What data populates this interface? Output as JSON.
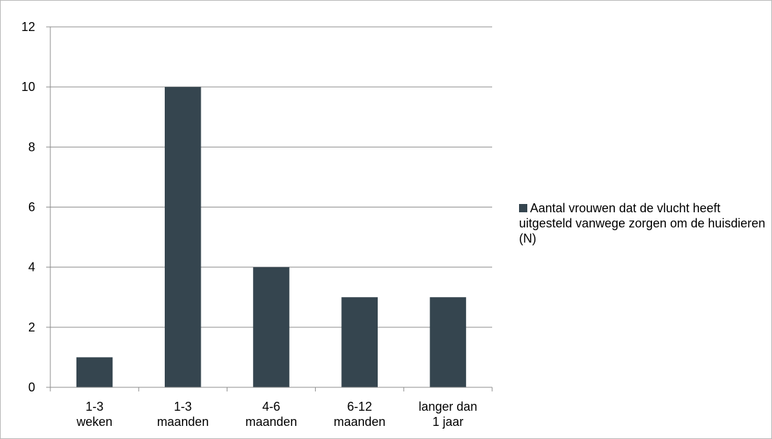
{
  "chart_data": {
    "type": "bar",
    "categories": [
      [
        "1-3",
        "weken"
      ],
      [
        "1-3",
        "maanden"
      ],
      [
        "4-6",
        "maanden"
      ],
      [
        "6-12",
        "maanden"
      ],
      [
        "langer dan",
        "1 jaar"
      ]
    ],
    "series": [
      {
        "name": "Aantal vrouwen dat de vlucht heeft uitgesteld vanwege zorgen om de huisdieren (N)",
        "values": [
          1,
          10,
          4,
          3,
          3
        ],
        "color": "#35454f"
      }
    ],
    "title": "",
    "xlabel": "",
    "ylabel": "",
    "ylim": [
      0,
      12
    ],
    "yticks": [
      0,
      2,
      4,
      6,
      8,
      10,
      12
    ],
    "grid": true,
    "legend_position": "right",
    "gridline_color": "#8c8c8c"
  }
}
